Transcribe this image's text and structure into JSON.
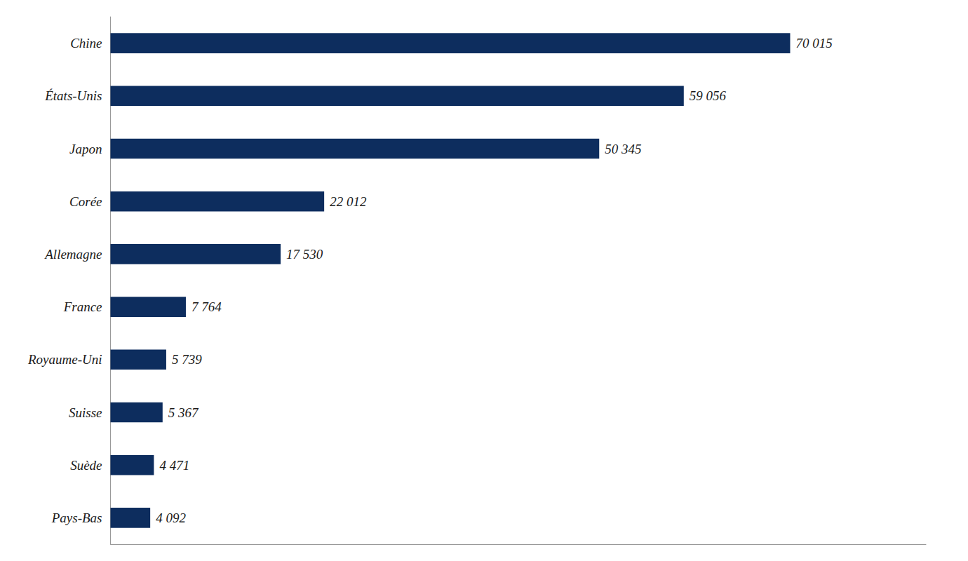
{
  "chart_data": {
    "type": "bar",
    "orientation": "horizontal",
    "categories": [
      "Chine",
      "États-Unis",
      "Japon",
      "Corée",
      "Allemagne",
      "France",
      "Royaume-Uni",
      "Suisse",
      "Suède",
      "Pays-Bas"
    ],
    "values": [
      70015,
      59056,
      50345,
      22012,
      17530,
      7764,
      5739,
      5367,
      4471,
      4092
    ],
    "value_labels": [
      "70 015",
      "59 056",
      "50 345",
      "22 012",
      "17 530",
      "7 764",
      "5 739",
      "5 367",
      "4 471",
      "4 092"
    ],
    "data_labels": true,
    "color": "#0d2d5e",
    "xlim": [
      0,
      84000
    ],
    "tick_labels": "y",
    "grid": false
  }
}
